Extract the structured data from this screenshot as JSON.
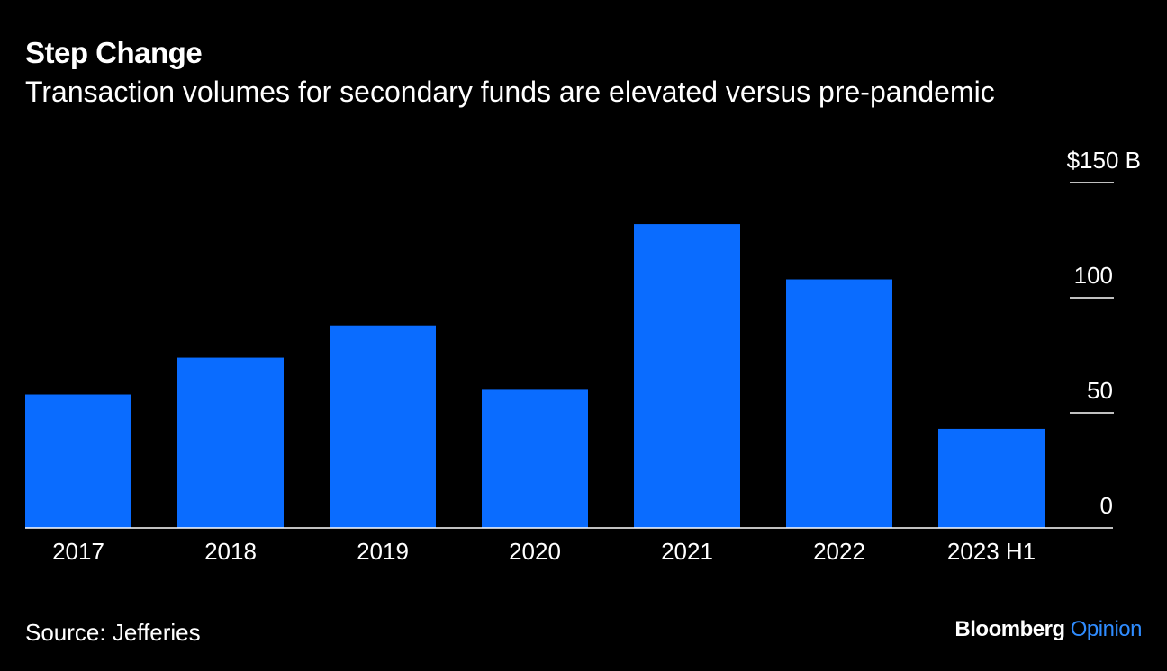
{
  "header": {
    "title": "Step Change",
    "subtitle": "Transaction volumes for secondary funds are elevated versus pre-pandemic"
  },
  "footer": {
    "source": "Source: Jefferies",
    "brand_primary": "Bloomberg",
    "brand_secondary": "Opinion"
  },
  "colors": {
    "background": "#000000",
    "bar": "#0a6cff",
    "text": "#ffffff",
    "brand_secondary": "#2f8cff"
  },
  "chart_data": {
    "type": "bar",
    "categories": [
      "2017",
      "2018",
      "2019",
      "2020",
      "2021",
      "2022",
      "2023 H1"
    ],
    "values": [
      58,
      74,
      88,
      60,
      132,
      108,
      43
    ],
    "ylim": [
      0,
      150
    ],
    "yticks": [
      0,
      50,
      100,
      150
    ],
    "ytick_labels": [
      "0",
      "50",
      "100",
      "$150 B"
    ],
    "xlabel": "",
    "ylabel": "",
    "grid": false,
    "legend": "none"
  }
}
